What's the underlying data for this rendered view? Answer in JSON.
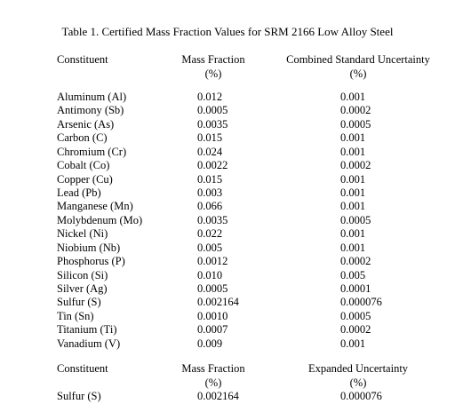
{
  "title": "Table 1. Certified Mass Fraction Values for SRM 2166 Low Alloy Steel",
  "table1": {
    "headers": {
      "constituent": "Constituent",
      "mass_fraction": "Mass Fraction",
      "mass_fraction_unit": "(%)",
      "uncertainty": "Combined Standard Uncertainty",
      "uncertainty_unit": "(%)"
    },
    "rows": [
      {
        "name": "Aluminum (Al)",
        "value": "0.012",
        "uncertainty": "0.001"
      },
      {
        "name": "Antimony (Sb)",
        "value": "0.0005",
        "uncertainty": "0.0002"
      },
      {
        "name": "Arsenic (As)",
        "value": "0.0035",
        "uncertainty": "0.0005"
      },
      {
        "name": "Carbon (C)",
        "value": "0.015",
        "uncertainty": "0.001"
      },
      {
        "name": "Chromium (Cr)",
        "value": "0.024",
        "uncertainty": "0.001"
      },
      {
        "name": "Cobalt (Co)",
        "value": "0.0022",
        "uncertainty": "0.0002"
      },
      {
        "name": "Copper (Cu)",
        "value": "0.015",
        "uncertainty": "0.001"
      },
      {
        "name": "Lead (Pb)",
        "value": "0.003",
        "uncertainty": "0.001"
      },
      {
        "name": "Manganese (Mn)",
        "value": "0.066",
        "uncertainty": "0.001"
      },
      {
        "name": "Molybdenum (Mo)",
        "value": "0.0035",
        "uncertainty": "0.0005"
      },
      {
        "name": "Nickel (Ni)",
        "value": "0.022",
        "uncertainty": "0.001"
      },
      {
        "name": "Niobium (Nb)",
        "value": "0.005",
        "uncertainty": "0.001"
      },
      {
        "name": "Phosphorus (P)",
        "value": "0.0012",
        "uncertainty": "0.0002"
      },
      {
        "name": "Silicon (Si)",
        "value": "0.010",
        "uncertainty": "0.005"
      },
      {
        "name": "Silver (Ag)",
        "value": "0.0005",
        "uncertainty": "0.0001"
      },
      {
        "name": "Sulfur (S)",
        "value": "0.002164",
        "uncertainty": "0.000076"
      },
      {
        "name": "Tin (Sn)",
        "value": "0.0010",
        "uncertainty": "0.0005"
      },
      {
        "name": "Titanium (Ti)",
        "value": "0.0007",
        "uncertainty": "0.0002"
      },
      {
        "name": "Vanadium (V)",
        "value": "0.009",
        "uncertainty": "0.001"
      }
    ]
  },
  "table2": {
    "headers": {
      "constituent": "Constituent",
      "mass_fraction": "Mass Fraction",
      "mass_fraction_unit": "(%)",
      "uncertainty": "Expanded Uncertainty",
      "uncertainty_unit": "(%)"
    },
    "rows": [
      {
        "name": "Sulfur (S)",
        "value": "0.002164",
        "uncertainty": "0.000076"
      }
    ]
  }
}
